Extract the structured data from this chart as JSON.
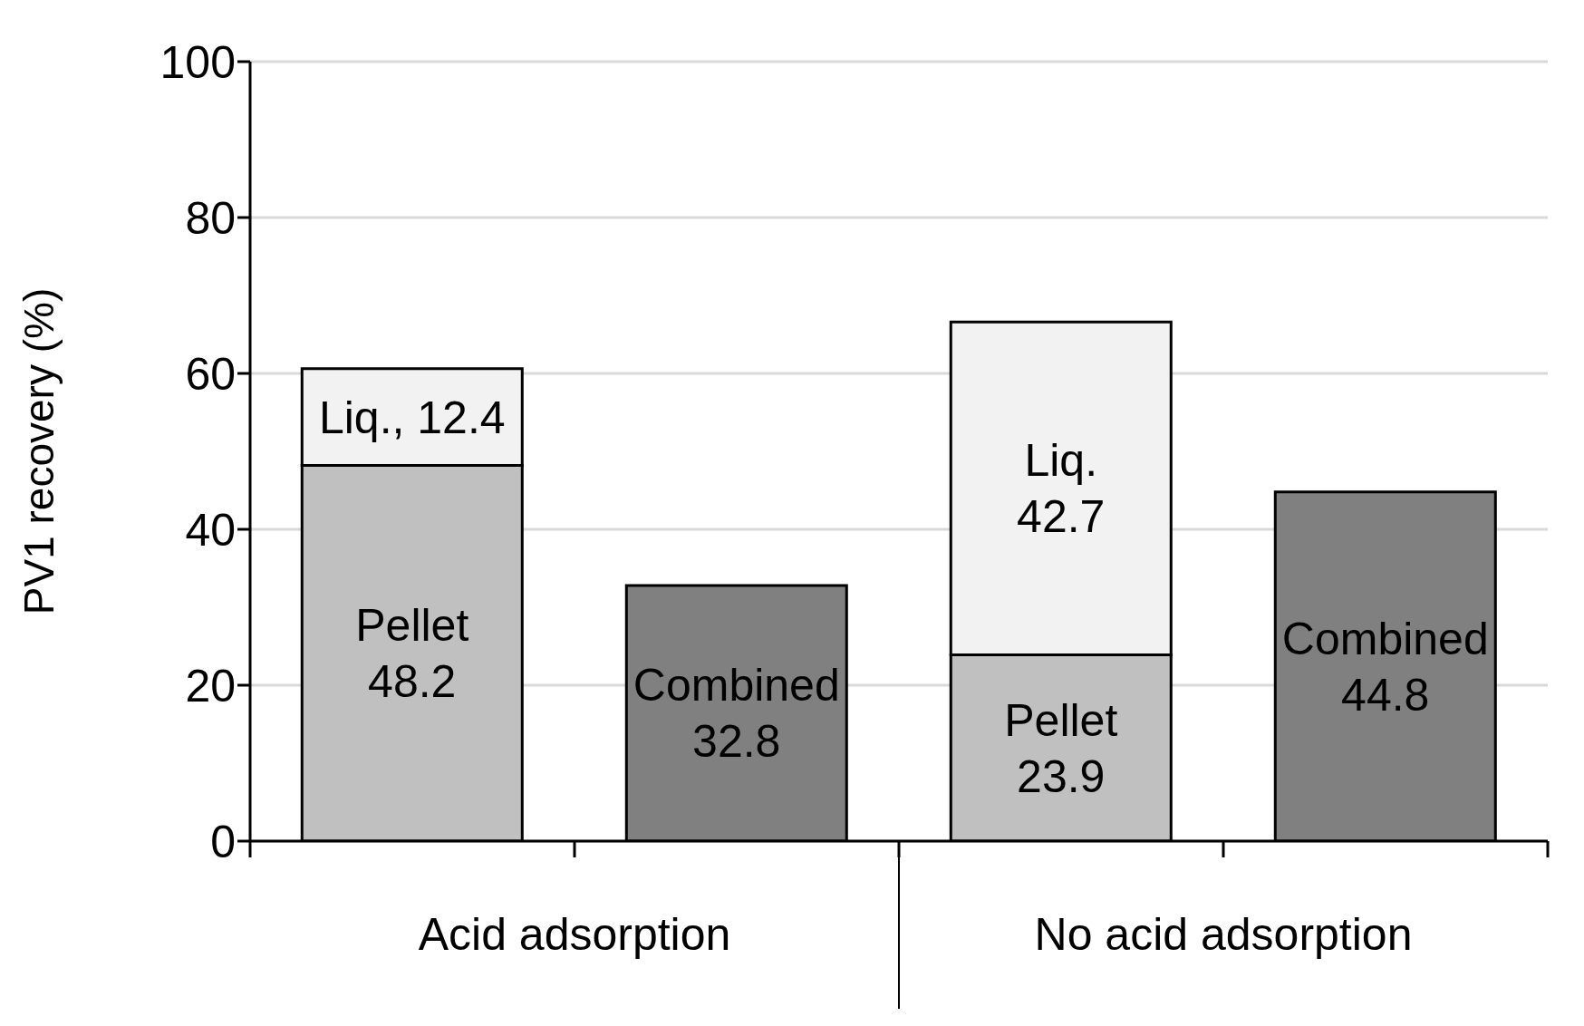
{
  "chart_data": {
    "type": "bar",
    "ylabel": "PV1 recovery (%)",
    "categories": [
      null,
      null,
      null,
      null
    ],
    "stacked": true,
    "ylim": [
      0,
      100
    ],
    "yticks": [
      0,
      20,
      40,
      60,
      80,
      100
    ],
    "grid": "y",
    "legend": false,
    "series": [
      {
        "color": "#c0c0c0",
        "values": [
          48.2,
          null,
          23.9,
          null
        ],
        "value_labels": [
          "Pellet\n48.2",
          null,
          "Pellet\n23.9",
          null
        ]
      },
      {
        "color": "#f2f2f2",
        "values": [
          12.4,
          null,
          42.7,
          null
        ],
        "value_labels": [
          "Liq., 12.4",
          null,
          "Liq.\n42.7",
          null
        ]
      },
      {
        "color": "#808080",
        "values": [
          null,
          32.8,
          null,
          44.8
        ],
        "value_labels": [
          null,
          "Combined\n32.8",
          null,
          "Combined\n44.8"
        ]
      }
    ],
    "annotations": [
      "Acid adsorption",
      "No acid adsorption"
    ]
  }
}
